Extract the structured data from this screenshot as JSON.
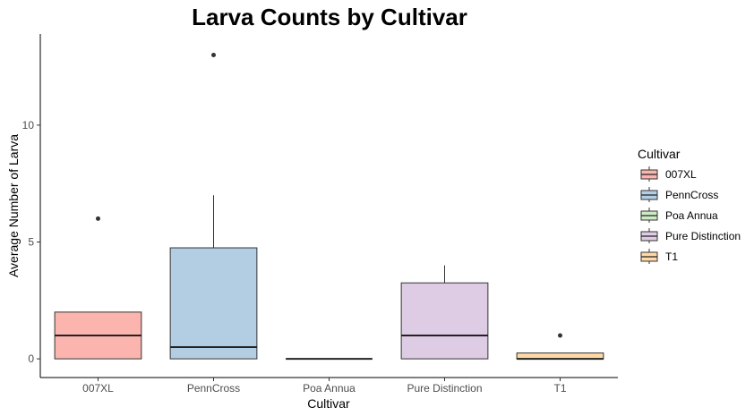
{
  "chart_data": {
    "type": "boxplot",
    "title": "Larva Counts by Cultivar",
    "xlabel": "Cultivar",
    "ylabel": "Average Number of Larva",
    "ylim": [
      -0.8,
      13.9
    ],
    "yticks": [
      0,
      5,
      10
    ],
    "grid": false,
    "legend": {
      "title": "Cultivar",
      "placement": "right"
    },
    "categories": [
      "007XL",
      "PennCross",
      "Poa Annua",
      "Pure Distinction",
      "T1"
    ],
    "boxes": [
      {
        "name": "007XL",
        "color": "#FBB4AE",
        "min": 0,
        "q1": 0,
        "median": 1,
        "q3": 2,
        "max": 2,
        "outliers": [
          6
        ]
      },
      {
        "name": "PennCross",
        "color": "#B3CDE3",
        "min": 0,
        "q1": 0,
        "median": 0.5,
        "q3": 4.75,
        "max": 7,
        "outliers": [
          13
        ]
      },
      {
        "name": "Poa Annua",
        "color": "#CCEBC5",
        "min": 0,
        "q1": 0,
        "median": 0,
        "q3": 0,
        "max": 0,
        "outliers": []
      },
      {
        "name": "Pure Distinction",
        "color": "#DECBE4",
        "min": 0,
        "q1": 0,
        "median": 1,
        "q3": 3.25,
        "max": 4,
        "outliers": []
      },
      {
        "name": "T1",
        "color": "#FED9A6",
        "min": 0,
        "q1": 0,
        "median": 0,
        "q3": 0.25,
        "max": 0.25,
        "outliers": [
          1
        ]
      }
    ]
  }
}
